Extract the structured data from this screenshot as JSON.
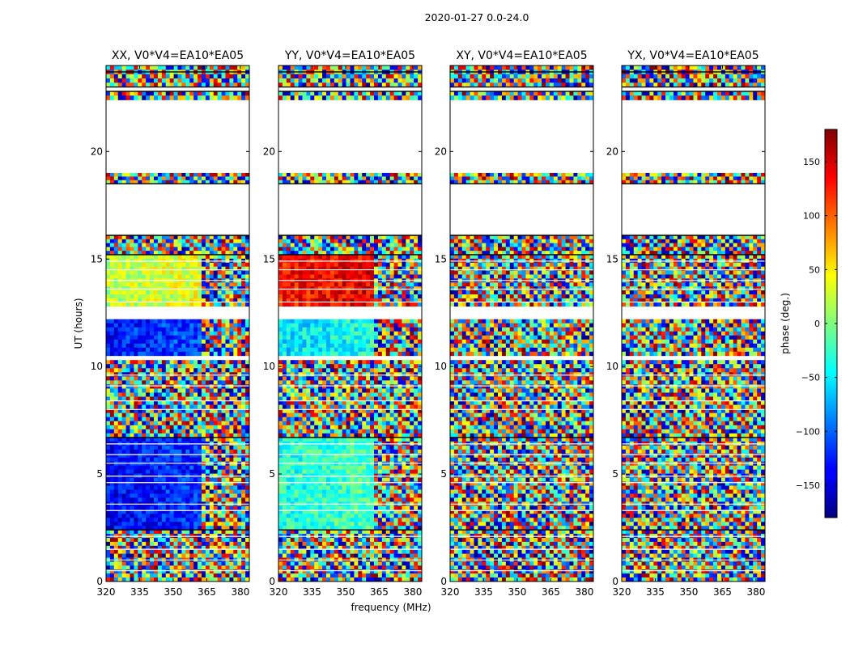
{
  "figure": {
    "suptitle": "2020-01-27 0.0-24.0",
    "xlabel": "frequency (MHz)",
    "ylabel": "UT (hours)",
    "colorbar_label": "phase (deg.)"
  },
  "chart_data": [
    {
      "type": "heatmap",
      "title": "XX, V0*V4=EA10*EA05",
      "x_ticks": [
        "320",
        "335",
        "350",
        "365",
        "380"
      ],
      "y_ticks": [
        "0",
        "5",
        "10",
        "15",
        "20"
      ],
      "xlim": [
        320,
        384
      ],
      "ylim": [
        0,
        24
      ],
      "value_range": [
        -180,
        180
      ],
      "colormap": "jet"
    },
    {
      "type": "heatmap",
      "title": "YY, V0*V4=EA10*EA05",
      "x_ticks": [
        "320",
        "335",
        "350",
        "365",
        "380"
      ],
      "y_ticks": [
        "0",
        "5",
        "10",
        "15",
        "20"
      ],
      "xlim": [
        320,
        384
      ],
      "ylim": [
        0,
        24
      ],
      "value_range": [
        -180,
        180
      ],
      "colormap": "jet"
    },
    {
      "type": "heatmap",
      "title": "XY, V0*V4=EA10*EA05",
      "x_ticks": [
        "320",
        "335",
        "350",
        "365",
        "380"
      ],
      "y_ticks": [
        "0",
        "5",
        "10",
        "15",
        "20"
      ],
      "xlim": [
        320,
        384
      ],
      "ylim": [
        0,
        24
      ],
      "value_range": [
        -180,
        180
      ],
      "colormap": "jet"
    },
    {
      "type": "heatmap",
      "title": "YX, V0*V4=EA10*EA05",
      "x_ticks": [
        "320",
        "335",
        "350",
        "365",
        "380"
      ],
      "y_ticks": [
        "0",
        "5",
        "10",
        "15",
        "20"
      ],
      "xlim": [
        320,
        384
      ],
      "ylim": [
        0,
        24
      ],
      "value_range": [
        -180,
        180
      ],
      "colormap": "jet"
    }
  ],
  "colorbar": {
    "ticks": [
      "150",
      "100",
      "50",
      "0",
      "−50",
      "−100",
      "−150"
    ],
    "tick_values": [
      150,
      100,
      50,
      0,
      -50,
      -100,
      -150
    ],
    "range": [
      -180,
      180
    ]
  }
}
